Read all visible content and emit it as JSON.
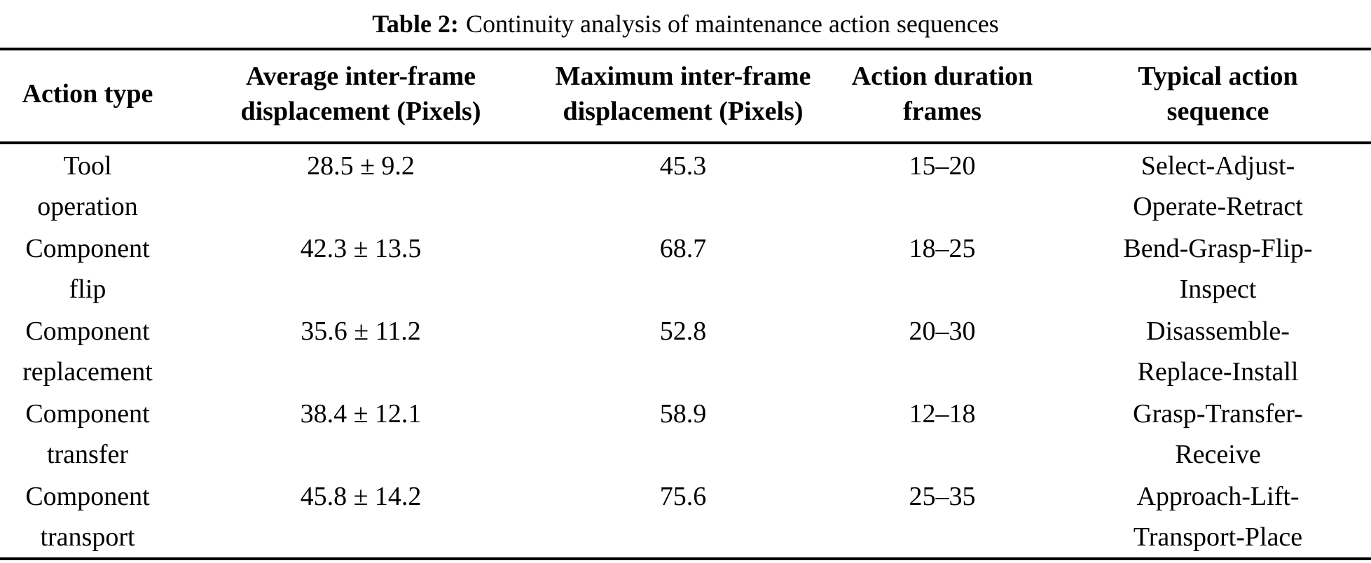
{
  "caption": {
    "label": "Table 2:",
    "text": "Continuity analysis of maintenance action sequences"
  },
  "colors": {
    "text": "#000000",
    "background": "#ffffff",
    "rule": "#000000"
  },
  "table": {
    "columns": [
      "Action type",
      "Average inter-frame\ndisplacement (Pixels)",
      "Maximum inter-frame\ndisplacement (Pixels)",
      "Action duration\nframes",
      "Typical action\nsequence"
    ],
    "rows": [
      {
        "action_type": "Tool\noperation",
        "avg_displacement": "28.5 ± 9.2",
        "max_displacement": "45.3",
        "duration_frames": "15–20",
        "sequence": "Select-Adjust-\nOperate-Retract"
      },
      {
        "action_type": "Component\nflip",
        "avg_displacement": "42.3 ± 13.5",
        "max_displacement": "68.7",
        "duration_frames": "18–25",
        "sequence": "Bend-Grasp-Flip-\nInspect"
      },
      {
        "action_type": "Component\nreplacement",
        "avg_displacement": "35.6 ± 11.2",
        "max_displacement": "52.8",
        "duration_frames": "20–30",
        "sequence": "Disassemble-\nReplace-Install"
      },
      {
        "action_type": "Component\ntransfer",
        "avg_displacement": "38.4 ± 12.1",
        "max_displacement": "58.9",
        "duration_frames": "12–18",
        "sequence": "Grasp-Transfer-\nReceive"
      },
      {
        "action_type": "Component\ntransport",
        "avg_displacement": "45.8 ± 14.2",
        "max_displacement": "75.6",
        "duration_frames": "25–35",
        "sequence": "Approach-Lift-\nTransport-Place"
      }
    ]
  }
}
